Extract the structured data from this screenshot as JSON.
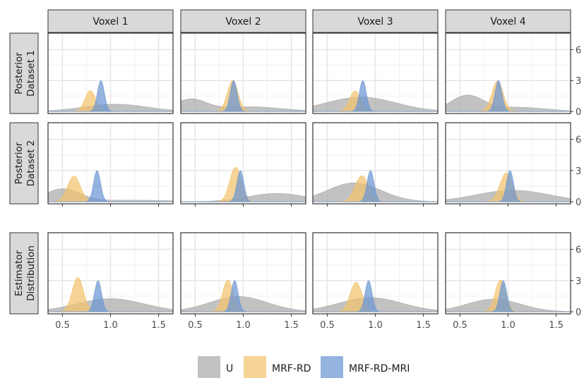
{
  "chart_data": {
    "type": "area",
    "title": "",
    "xlabel": "",
    "ylabel": "",
    "xlim": [
      0.35,
      1.65
    ],
    "ylim": [
      -0.2,
      7.6
    ],
    "x_ticks": [
      0.5,
      1.0,
      1.5
    ],
    "x_tick_labels": [
      "0.5",
      "1.0",
      "1.5"
    ],
    "y_ticks": [
      0,
      3,
      6
    ],
    "y_tick_labels": [
      "0",
      "3",
      "6"
    ],
    "columns": [
      "Voxel 1",
      "Voxel 2",
      "Voxel 3",
      "Voxel 4"
    ],
    "rows": [
      {
        "id": "r1",
        "lines": [
          "Posterior",
          "Dataset 1"
        ]
      },
      {
        "id": "r2",
        "lines": [
          "Posterior",
          "Dataset 2"
        ]
      },
      {
        "id": "r3",
        "lines": [
          "Estimator",
          "Distribution"
        ]
      }
    ],
    "grid": true,
    "legend_position": "bottom",
    "series": [
      {
        "name": "U",
        "color": "#aaaaaa"
      },
      {
        "name": "MRF-RD",
        "color": "#f2c46d"
      },
      {
        "name": "MRF-RD-MRI",
        "color": "#6b97d2"
      }
    ],
    "panels": [
      {
        "row": 0,
        "col": 0,
        "densities": [
          {
            "series": "U",
            "components": [
              {
                "mean": 1.05,
                "sd": 0.33,
                "weight": 0.58
              }
            ]
          },
          {
            "series": "MRF-RD",
            "components": [
              {
                "mean": 0.79,
                "sd": 0.055,
                "weight": 0.28
              }
            ]
          },
          {
            "series": "MRF-RD-MRI",
            "components": [
              {
                "mean": 0.9,
                "sd": 0.036,
                "weight": 0.27
              }
            ]
          }
        ]
      },
      {
        "row": 0,
        "col": 1,
        "densities": [
          {
            "series": "U",
            "components": [
              {
                "mean": 0.45,
                "sd": 0.16,
                "weight": 0.45
              },
              {
                "mean": 1.05,
                "sd": 0.35,
                "weight": 0.4
              }
            ]
          },
          {
            "series": "MRF-RD",
            "components": [
              {
                "mean": 0.89,
                "sd": 0.056,
                "weight": 0.42
              }
            ]
          },
          {
            "series": "MRF-RD-MRI",
            "components": [
              {
                "mean": 0.9,
                "sd": 0.036,
                "weight": 0.27
              }
            ]
          }
        ]
      },
      {
        "row": 0,
        "col": 2,
        "densities": [
          {
            "series": "U",
            "components": [
              {
                "mean": 0.85,
                "sd": 0.36,
                "weight": 1.26
              }
            ]
          },
          {
            "series": "MRF-RD",
            "components": [
              {
                "mean": 0.79,
                "sd": 0.058,
                "weight": 0.29
              }
            ]
          },
          {
            "series": "MRF-RD-MRI",
            "components": [
              {
                "mean": 0.87,
                "sd": 0.036,
                "weight": 0.27
              }
            ]
          }
        ]
      },
      {
        "row": 0,
        "col": 3,
        "densities": [
          {
            "series": "U",
            "components": [
              {
                "mean": 0.57,
                "sd": 0.17,
                "weight": 0.64
              },
              {
                "mean": 1.1,
                "sd": 0.3,
                "weight": 0.3
              }
            ]
          },
          {
            "series": "MRF-RD",
            "components": [
              {
                "mean": 0.89,
                "sd": 0.058,
                "weight": 0.43
              }
            ]
          },
          {
            "series": "MRF-RD-MRI",
            "components": [
              {
                "mean": 0.9,
                "sd": 0.036,
                "weight": 0.27
              }
            ]
          }
        ]
      },
      {
        "row": 1,
        "col": 0,
        "densities": [
          {
            "series": "U",
            "components": [
              {
                "mean": 0.5,
                "sd": 0.18,
                "weight": 0.55
              },
              {
                "mean": 1.2,
                "sd": 0.4,
                "weight": 0.15
              }
            ]
          },
          {
            "series": "MRF-RD",
            "components": [
              {
                "mean": 0.62,
                "sd": 0.066,
                "weight": 0.41
              }
            ]
          },
          {
            "series": "MRF-RD-MRI",
            "components": [
              {
                "mean": 0.86,
                "sd": 0.036,
                "weight": 0.27
              }
            ]
          }
        ]
      },
      {
        "row": 1,
        "col": 1,
        "densities": [
          {
            "series": "U",
            "components": [
              {
                "mean": 1.35,
                "sd": 0.3,
                "weight": 0.6
              }
            ]
          },
          {
            "series": "MRF-RD",
            "components": [
              {
                "mean": 0.92,
                "sd": 0.06,
                "weight": 0.5
              }
            ]
          },
          {
            "series": "MRF-RD-MRI",
            "components": [
              {
                "mean": 0.97,
                "sd": 0.036,
                "weight": 0.27
              }
            ]
          }
        ]
      },
      {
        "row": 1,
        "col": 2,
        "densities": [
          {
            "series": "U",
            "components": [
              {
                "mean": 0.78,
                "sd": 0.28,
                "weight": 1.27
              }
            ]
          },
          {
            "series": "MRF-RD",
            "components": [
              {
                "mean": 0.86,
                "sd": 0.07,
                "weight": 0.44
              }
            ]
          },
          {
            "series": "MRF-RD-MRI",
            "components": [
              {
                "mean": 0.95,
                "sd": 0.036,
                "weight": 0.27
              }
            ]
          }
        ]
      },
      {
        "row": 1,
        "col": 3,
        "densities": [
          {
            "series": "U",
            "components": [
              {
                "mean": 1.05,
                "sd": 0.38,
                "weight": 1.05
              }
            ]
          },
          {
            "series": "MRF-RD",
            "components": [
              {
                "mean": 0.98,
                "sd": 0.065,
                "weight": 0.45
              }
            ]
          },
          {
            "series": "MRF-RD-MRI",
            "components": [
              {
                "mean": 1.02,
                "sd": 0.036,
                "weight": 0.27
              }
            ]
          }
        ]
      },
      {
        "row": 2,
        "col": 0,
        "densities": [
          {
            "series": "U",
            "components": [
              {
                "mean": 1.0,
                "sd": 0.35,
                "weight": 1.1
              }
            ]
          },
          {
            "series": "MRF-RD",
            "components": [
              {
                "mean": 0.66,
                "sd": 0.058,
                "weight": 0.48
              }
            ]
          },
          {
            "series": "MRF-RD-MRI",
            "components": [
              {
                "mean": 0.87,
                "sd": 0.036,
                "weight": 0.27
              }
            ]
          }
        ]
      },
      {
        "row": 2,
        "col": 1,
        "densities": [
          {
            "series": "U",
            "components": [
              {
                "mean": 0.95,
                "sd": 0.3,
                "weight": 1.1
              }
            ]
          },
          {
            "series": "MRF-RD",
            "components": [
              {
                "mean": 0.84,
                "sd": 0.055,
                "weight": 0.42
              }
            ]
          },
          {
            "series": "MRF-RD-MRI",
            "components": [
              {
                "mean": 0.91,
                "sd": 0.036,
                "weight": 0.27
              }
            ]
          }
        ]
      },
      {
        "row": 2,
        "col": 2,
        "densities": [
          {
            "series": "U",
            "components": [
              {
                "mean": 0.95,
                "sd": 0.33,
                "weight": 1.12
              }
            ]
          },
          {
            "series": "MRF-RD",
            "components": [
              {
                "mean": 0.8,
                "sd": 0.062,
                "weight": 0.44
              }
            ]
          },
          {
            "series": "MRF-RD-MRI",
            "components": [
              {
                "mean": 0.93,
                "sd": 0.036,
                "weight": 0.27
              }
            ]
          }
        ]
      },
      {
        "row": 2,
        "col": 3,
        "densities": [
          {
            "series": "U",
            "components": [
              {
                "mean": 0.85,
                "sd": 0.28,
                "weight": 0.85
              }
            ]
          },
          {
            "series": "MRF-RD",
            "components": [
              {
                "mean": 0.92,
                "sd": 0.055,
                "weight": 0.42
              }
            ]
          },
          {
            "series": "MRF-RD-MRI",
            "components": [
              {
                "mean": 0.95,
                "sd": 0.036,
                "weight": 0.27
              }
            ]
          }
        ]
      }
    ]
  }
}
